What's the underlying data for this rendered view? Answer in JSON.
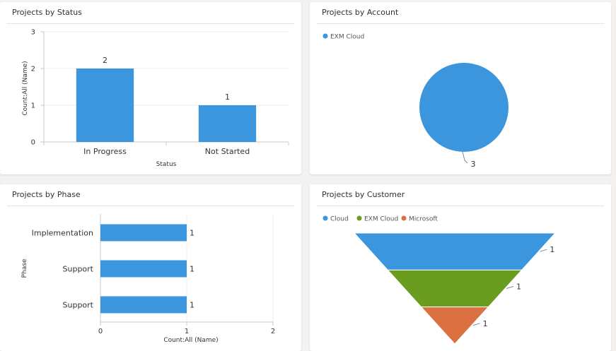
{
  "colors": {
    "blue": "#3b96dd",
    "green": "#6a9d1f",
    "orange": "#db7040",
    "grid": "#ececec",
    "axis": "#c8c8c8"
  },
  "chart_data": [
    {
      "id": "status",
      "type": "bar",
      "title": "Projects by Status",
      "categories": [
        "In Progress",
        "Not Started"
      ],
      "values": [
        2,
        1
      ],
      "xlabel": "Status",
      "ylabel": "Count:All (Name)",
      "ylim": [
        0,
        3
      ],
      "yticks": [
        "0",
        "1",
        "2",
        "3"
      ],
      "data_labels": [
        "2",
        "1"
      ],
      "grid": true
    },
    {
      "id": "account",
      "type": "pie",
      "title": "Projects by Account",
      "categories": [
        "EXM Cloud"
      ],
      "values": [
        3
      ],
      "data_labels": [
        "3"
      ],
      "legend": "top-left"
    },
    {
      "id": "phase",
      "type": "bar",
      "orientation": "horizontal",
      "title": "Projects by Phase",
      "categories": [
        "Implementation",
        "Support",
        "Support"
      ],
      "values": [
        1,
        1,
        1
      ],
      "xlabel": "Count:All (Name)",
      "ylabel": "Phase",
      "xlim": [
        0,
        2
      ],
      "xticks": [
        "0",
        "1",
        "2"
      ],
      "data_labels": [
        "1",
        "1",
        "1"
      ],
      "grid": true
    },
    {
      "id": "customer",
      "type": "funnel",
      "title": "Projects by Customer",
      "categories": [
        "Cloud",
        "EXM Cloud",
        "Microsoft"
      ],
      "values": [
        1,
        1,
        1
      ],
      "data_labels": [
        "1",
        "1",
        "1"
      ],
      "legend": "top-left"
    }
  ]
}
